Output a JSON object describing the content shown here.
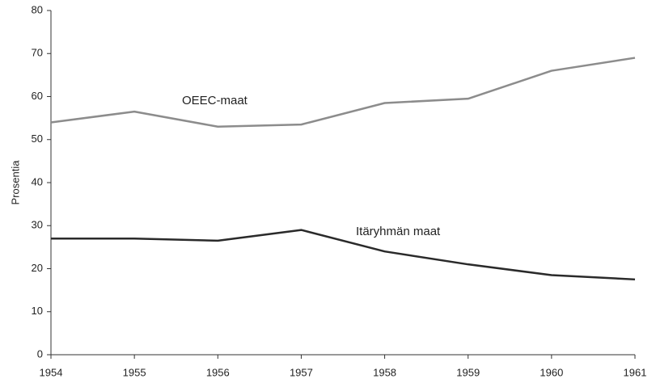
{
  "chart_data": {
    "type": "line",
    "y_label": "Prosentia",
    "x": [
      1954,
      1955,
      1956,
      1957,
      1958,
      1959,
      1960,
      1961
    ],
    "series": [
      {
        "name": "OEEC-maat",
        "color": "#8c8c8c",
        "values": [
          54,
          56.5,
          53,
          53.5,
          58.5,
          59.5,
          66,
          69
        ]
      },
      {
        "name": "Itäryhmän maat",
        "color": "#2a2a2a",
        "values": [
          27,
          27,
          26.5,
          29,
          24,
          21,
          18.5,
          17.5
        ]
      }
    ],
    "xlim": [
      1954,
      1961
    ],
    "xticks": [
      1954,
      1955,
      1956,
      1957,
      1958,
      1959,
      1960,
      1961
    ],
    "ylim": [
      0,
      80
    ],
    "yticks": [
      0,
      10,
      20,
      30,
      40,
      50,
      60,
      70,
      80
    ],
    "grid": false
  }
}
